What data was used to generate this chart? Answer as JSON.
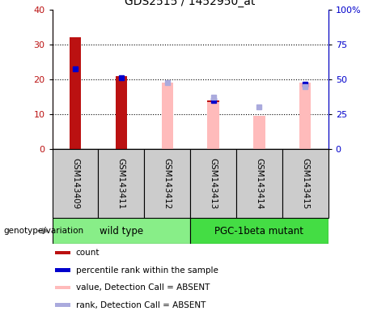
{
  "title": "GDS2515 / 1452950_at",
  "samples": [
    "GSM143409",
    "GSM143411",
    "GSM143412",
    "GSM143413",
    "GSM143414",
    "GSM143415"
  ],
  "count_values": [
    32,
    21,
    0,
    14,
    0,
    19
  ],
  "percentile_rank_left": [
    23,
    20.5,
    0,
    14,
    0,
    18.5
  ],
  "absent_value": [
    0,
    0,
    19,
    13.5,
    9.5,
    19
  ],
  "absent_rank_left": [
    0,
    0,
    19,
    15,
    12,
    18
  ],
  "wild_type_label": "wild type",
  "mutant_label": "PGC-1beta mutant",
  "genotype_label": "genotype/variation",
  "ylim_left": [
    0,
    40
  ],
  "ylim_right": [
    0,
    100
  ],
  "yticks_left": [
    0,
    10,
    20,
    30,
    40
  ],
  "yticks_right_vals": [
    0,
    25,
    50,
    75,
    100
  ],
  "yticks_right_labels": [
    "0",
    "25",
    "50",
    "75",
    "100%"
  ],
  "color_count": "#bb1111",
  "color_percentile": "#0000cc",
  "color_absent_value": "#ffbbbb",
  "color_absent_rank": "#aaaadd",
  "color_wild_type_bg": "#88ee88",
  "color_mutant_bg": "#44dd44",
  "color_sample_bg": "#cccccc",
  "color_grid": "#000000",
  "bar_width": 0.25,
  "legend_items": [
    "count",
    "percentile rank within the sample",
    "value, Detection Call = ABSENT",
    "rank, Detection Call = ABSENT"
  ],
  "legend_colors": [
    "#bb1111",
    "#0000cc",
    "#ffbbbb",
    "#aaaadd"
  ]
}
